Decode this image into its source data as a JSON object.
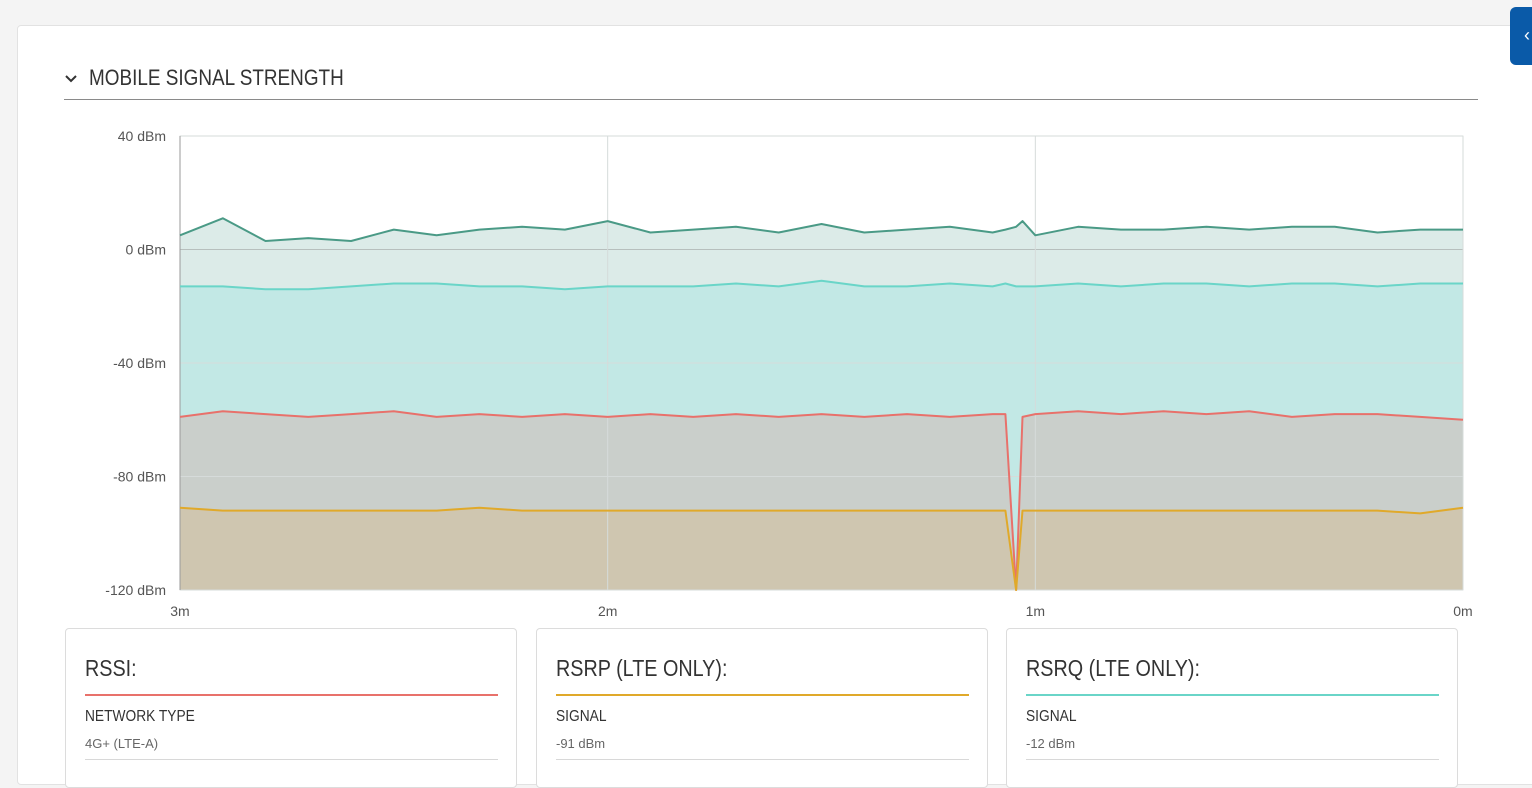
{
  "section": {
    "title": "MOBILE SIGNAL STRENGTH"
  },
  "chart_data": {
    "type": "area",
    "title": "",
    "xlabel": "",
    "ylabel": "",
    "ylim": [
      -120,
      40
    ],
    "y_ticks": [
      40,
      0,
      -40,
      -80,
      -120
    ],
    "y_tick_labels": [
      "40 dBm",
      "0 dBm",
      "-40 dBm",
      "-80 dBm",
      "-120 dBm"
    ],
    "x_ticks": [
      3,
      2,
      1,
      0
    ],
    "x_tick_labels": [
      "3m",
      "2m",
      "1m",
      "0m"
    ],
    "x_unit": "minutes ago",
    "grid": true,
    "series": [
      {
        "key": "sinr",
        "color": "#4a9a86",
        "fill": "#dcebe8",
        "x": [
          3,
          2.9,
          2.8,
          2.7,
          2.6,
          2.5,
          2.4,
          2.3,
          2.2,
          2.1,
          2.0,
          1.9,
          1.8,
          1.7,
          1.6,
          1.5,
          1.4,
          1.3,
          1.2,
          1.1,
          1.07,
          1.045,
          1.03,
          1.0,
          0.9,
          0.8,
          0.7,
          0.6,
          0.5,
          0.4,
          0.3,
          0.2,
          0.1,
          0
        ],
        "values": [
          5,
          11,
          3,
          4,
          3,
          7,
          5,
          7,
          8,
          7,
          10,
          6,
          7,
          8,
          6,
          9,
          6,
          7,
          8,
          6,
          7,
          8,
          10,
          5,
          8,
          7,
          7,
          8,
          7,
          8,
          8,
          6,
          7,
          7
        ]
      },
      {
        "key": "rsrq",
        "color": "#6ad5c8",
        "fill": "#c2e8e5",
        "x": [
          3,
          2.9,
          2.8,
          2.7,
          2.6,
          2.5,
          2.4,
          2.3,
          2.2,
          2.1,
          2.0,
          1.9,
          1.8,
          1.7,
          1.6,
          1.5,
          1.4,
          1.3,
          1.2,
          1.1,
          1.07,
          1.045,
          1.03,
          1.0,
          0.9,
          0.8,
          0.7,
          0.6,
          0.5,
          0.4,
          0.3,
          0.2,
          0.1,
          0
        ],
        "values": [
          -13,
          -13,
          -14,
          -14,
          -13,
          -12,
          -12,
          -13,
          -13,
          -14,
          -13,
          -13,
          -13,
          -12,
          -13,
          -11,
          -13,
          -13,
          -12,
          -13,
          -12,
          -13,
          -13,
          -13,
          -12,
          -13,
          -12,
          -12,
          -13,
          -12,
          -12,
          -13,
          -12,
          -12
        ]
      },
      {
        "key": "rssi",
        "color": "#e8716b",
        "fill": "#cacfcb",
        "x": [
          3,
          2.9,
          2.8,
          2.7,
          2.6,
          2.5,
          2.4,
          2.3,
          2.2,
          2.1,
          2.0,
          1.9,
          1.8,
          1.7,
          1.6,
          1.5,
          1.4,
          1.3,
          1.2,
          1.1,
          1.07,
          1.045,
          1.03,
          1.0,
          0.9,
          0.8,
          0.7,
          0.6,
          0.5,
          0.4,
          0.3,
          0.2,
          0.1,
          0
        ],
        "values": [
          -59,
          -57,
          -58,
          -59,
          -58,
          -57,
          -59,
          -58,
          -59,
          -58,
          -59,
          -58,
          -59,
          -58,
          -59,
          -58,
          -59,
          -58,
          -59,
          -58,
          -58,
          -120,
          -59,
          -58,
          -57,
          -58,
          -57,
          -58,
          -57,
          -59,
          -58,
          -58,
          -59,
          -60
        ]
      },
      {
        "key": "rsrp",
        "color": "#e0a92a",
        "fill": "#cfc6b0",
        "x": [
          3,
          2.9,
          2.8,
          2.7,
          2.6,
          2.5,
          2.4,
          2.3,
          2.2,
          2.1,
          2.0,
          1.9,
          1.8,
          1.7,
          1.6,
          1.5,
          1.4,
          1.3,
          1.2,
          1.1,
          1.07,
          1.045,
          1.03,
          1.0,
          0.9,
          0.8,
          0.7,
          0.6,
          0.5,
          0.4,
          0.3,
          0.2,
          0.1,
          0
        ],
        "values": [
          -91,
          -92,
          -92,
          -92,
          -92,
          -92,
          -92,
          -91,
          -92,
          -92,
          -92,
          -92,
          -92,
          -92,
          -92,
          -92,
          -92,
          -92,
          -92,
          -92,
          -92,
          -120,
          -92,
          -92,
          -92,
          -92,
          -92,
          -92,
          -92,
          -92,
          -92,
          -92,
          -93,
          -91
        ]
      }
    ]
  },
  "cards": [
    {
      "title": "RSSI:",
      "color": "#e8716b",
      "label": "NETWORK TYPE",
      "value": "4G+ (LTE-A)"
    },
    {
      "title": "RSRP (LTE ONLY):",
      "color": "#e0a92a",
      "label": "SIGNAL",
      "value": "-91 dBm"
    },
    {
      "title": "RSRQ (LTE ONLY):",
      "color": "#6ad5c8",
      "label": "SIGNAL",
      "value": "-12 dBm"
    }
  ],
  "side_tab": {
    "icon": "chevron-left-icon",
    "color": "#0a5aa8"
  }
}
